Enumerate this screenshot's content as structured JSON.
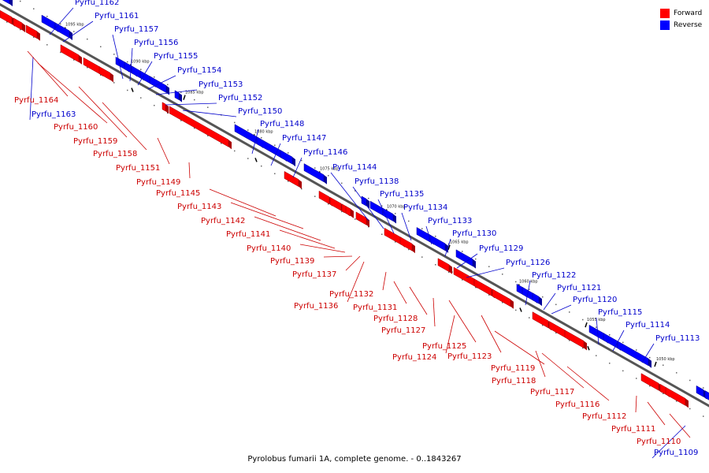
{
  "caption": "Pyrolobus fumarii 1A, complete genome. - 0..1843267",
  "legend": {
    "forward_label": "Forward",
    "reverse_label": "Reverse",
    "forward_color": "#ff0000",
    "reverse_color": "#0000ff"
  },
  "label_colors": {
    "forward": "#cc0000",
    "reverse": "#0000cc"
  },
  "ticks": [
    "1095 kbp",
    "1090 kbp",
    "1085 kbp",
    "1080 kbp",
    "1075 kbp",
    "1070 kbp",
    "1065 kbp",
    "1060 kbp",
    "1055 kbp",
    "1050 kbp"
  ],
  "genes": [
    {
      "name": "Pyrfu_1162",
      "strand": "reverse"
    },
    {
      "name": "Pyrfu_1161",
      "strand": "reverse"
    },
    {
      "name": "Pyrfu_1157",
      "strand": "reverse"
    },
    {
      "name": "Pyrfu_1156",
      "strand": "reverse"
    },
    {
      "name": "Pyrfu_1155",
      "strand": "reverse"
    },
    {
      "name": "Pyrfu_1154",
      "strand": "reverse"
    },
    {
      "name": "Pyrfu_1153",
      "strand": "reverse"
    },
    {
      "name": "Pyrfu_1152",
      "strand": "reverse"
    },
    {
      "name": "Pyrfu_1150",
      "strand": "reverse"
    },
    {
      "name": "Pyrfu_1148",
      "strand": "reverse"
    },
    {
      "name": "Pyrfu_1147",
      "strand": "reverse"
    },
    {
      "name": "Pyrfu_1146",
      "strand": "reverse"
    },
    {
      "name": "Pyrfu_1144",
      "strand": "reverse"
    },
    {
      "name": "Pyrfu_1138",
      "strand": "reverse"
    },
    {
      "name": "Pyrfu_1135",
      "strand": "reverse"
    },
    {
      "name": "Pyrfu_1134",
      "strand": "reverse"
    },
    {
      "name": "Pyrfu_1133",
      "strand": "reverse"
    },
    {
      "name": "Pyrfu_1130",
      "strand": "reverse"
    },
    {
      "name": "Pyrfu_1129",
      "strand": "reverse"
    },
    {
      "name": "Pyrfu_1126",
      "strand": "reverse"
    },
    {
      "name": "Pyrfu_1122",
      "strand": "reverse"
    },
    {
      "name": "Pyrfu_1121",
      "strand": "reverse"
    },
    {
      "name": "Pyrfu_1120",
      "strand": "reverse"
    },
    {
      "name": "Pyrfu_1115",
      "strand": "reverse"
    },
    {
      "name": "Pyrfu_1114",
      "strand": "reverse"
    },
    {
      "name": "Pyrfu_1113",
      "strand": "reverse"
    },
    {
      "name": "Pyrfu_1109",
      "strand": "reverse"
    },
    {
      "name": "Pyrfu_1163",
      "strand": "reverse"
    },
    {
      "name": "Pyrfu_1164",
      "strand": "forward"
    },
    {
      "name": "Pyrfu_1160",
      "strand": "forward"
    },
    {
      "name": "Pyrfu_1159",
      "strand": "forward"
    },
    {
      "name": "Pyrfu_1158",
      "strand": "forward"
    },
    {
      "name": "Pyrfu_1151",
      "strand": "forward"
    },
    {
      "name": "Pyrfu_1149",
      "strand": "forward"
    },
    {
      "name": "Pyrfu_1145",
      "strand": "forward"
    },
    {
      "name": "Pyrfu_1143",
      "strand": "forward"
    },
    {
      "name": "Pyrfu_1142",
      "strand": "forward"
    },
    {
      "name": "Pyrfu_1141",
      "strand": "forward"
    },
    {
      "name": "Pyrfu_1140",
      "strand": "forward"
    },
    {
      "name": "Pyrfu_1139",
      "strand": "forward"
    },
    {
      "name": "Pyrfu_1137",
      "strand": "forward"
    },
    {
      "name": "Pyrfu_1136",
      "strand": "forward"
    },
    {
      "name": "Pyrfu_1132",
      "strand": "forward"
    },
    {
      "name": "Pyrfu_1131",
      "strand": "forward"
    },
    {
      "name": "Pyrfu_1128",
      "strand": "forward"
    },
    {
      "name": "Pyrfu_1127",
      "strand": "forward"
    },
    {
      "name": "Pyrfu_1125",
      "strand": "forward"
    },
    {
      "name": "Pyrfu_1124",
      "strand": "forward"
    },
    {
      "name": "Pyrfu_1123",
      "strand": "forward"
    },
    {
      "name": "Pyrfu_1119",
      "strand": "forward"
    },
    {
      "name": "Pyrfu_1118",
      "strand": "forward"
    },
    {
      "name": "Pyrfu_1117",
      "strand": "forward"
    },
    {
      "name": "Pyrfu_1116",
      "strand": "forward"
    },
    {
      "name": "Pyrfu_1112",
      "strand": "forward"
    },
    {
      "name": "Pyrfu_1111",
      "strand": "forward"
    },
    {
      "name": "Pyrfu_1110",
      "strand": "forward"
    }
  ]
}
